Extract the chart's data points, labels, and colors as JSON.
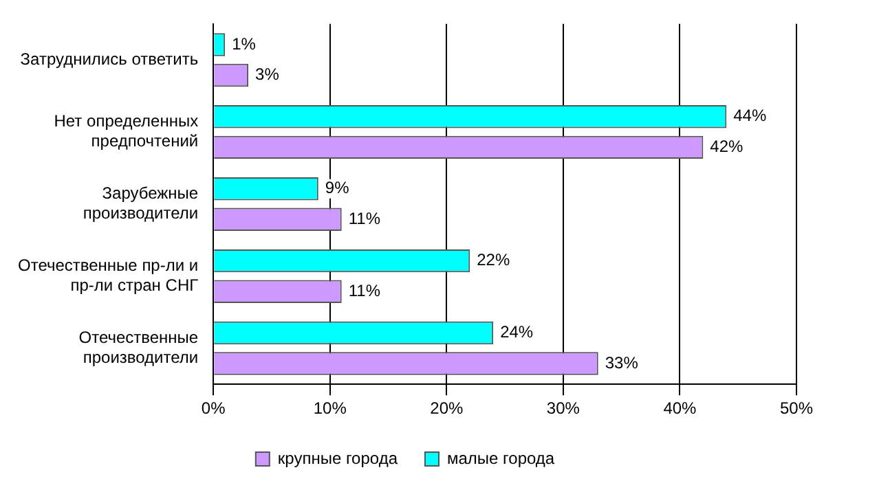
{
  "chart_data": {
    "type": "bar",
    "orientation": "horizontal",
    "categories": [
      "Затруднились ответить",
      "Нет определенных предпочтений",
      "Зарубежные производители",
      "Отечественные пр-ли и пр-ли стран СНГ",
      "Отечественные производители"
    ],
    "series": [
      {
        "name": "крупные города",
        "color": "#cc99ff",
        "values": [
          3,
          42,
          11,
          11,
          33
        ],
        "value_labels": [
          "3%",
          "42%",
          "11%",
          "11%",
          "33%"
        ]
      },
      {
        "name": "малые города",
        "color": "#00ffff",
        "values": [
          1,
          44,
          9,
          22,
          24
        ],
        "value_labels": [
          "1%",
          "44%",
          "9%",
          "22%",
          "24%"
        ]
      }
    ],
    "xlim": [
      0,
      50
    ],
    "xticks": [
      {
        "value": 0,
        "label": "0%"
      },
      {
        "value": 10,
        "label": "10%"
      },
      {
        "value": 20,
        "label": "20%"
      },
      {
        "value": 30,
        "label": "30%"
      },
      {
        "value": 40,
        "label": "40%"
      },
      {
        "value": 50,
        "label": "50%"
      }
    ],
    "grid": "x",
    "legend": "bottom"
  }
}
